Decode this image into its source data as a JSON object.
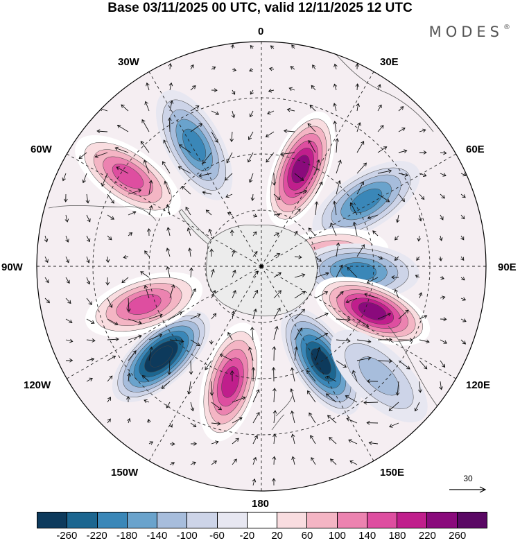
{
  "title": "Base 03/11/2025 00 UTC, valid 12/11/2025 12 UTC",
  "brand": {
    "name": "MODES",
    "mark": "®"
  },
  "longitude_labels": {
    "lon_0": "0",
    "lon_30e": "30E",
    "lon_60e": "60E",
    "lon_90e": "90E",
    "lon_120e": "120E",
    "lon_150e": "150E",
    "lon_180": "180",
    "lon_150w": "150W",
    "lon_120w": "120W",
    "lon_90w": "90W",
    "lon_60w": "60W",
    "lon_30w": "30W"
  },
  "reference_vector": {
    "label": "30"
  },
  "colorbar": {
    "colors": [
      "#0d3a5c",
      "#1c6690",
      "#3a87b8",
      "#6aa3cc",
      "#a7bddc",
      "#cdd4e8",
      "#e7e7f1",
      "#ffffff",
      "#f9dde0",
      "#f4b5c4",
      "#ec83b0",
      "#de4ea0",
      "#c01e8c",
      "#8a0a7c",
      "#5a0864"
    ],
    "ticks": [
      "-260",
      "-220",
      "-180",
      "-140",
      "-100",
      "-60",
      "-20",
      "20",
      "60",
      "100",
      "140",
      "180",
      "220",
      "260"
    ]
  },
  "anomaly_centers": [
    {
      "lon": 22,
      "colat": 28,
      "value": 230
    },
    {
      "lon": 58,
      "colat": 33,
      "value": -150
    },
    {
      "lon": 82,
      "colat": 18,
      "value": 120
    },
    {
      "lon": 93,
      "colat": 26,
      "value": -170
    },
    {
      "lon": 112,
      "colat": 32,
      "value": 220
    },
    {
      "lon": 148,
      "colat": 30,
      "value": -250
    },
    {
      "lon": 195,
      "colat": 32,
      "value": 200
    },
    {
      "lon": 228,
      "colat": 36,
      "value": -260
    },
    {
      "lon": 252,
      "colat": 33,
      "value": 140
    },
    {
      "lon": 304,
      "colat": 43,
      "value": 150
    },
    {
      "lon": 331,
      "colat": 37,
      "value": -140
    },
    {
      "lon": 133,
      "colat": 43,
      "value": -60
    }
  ]
}
